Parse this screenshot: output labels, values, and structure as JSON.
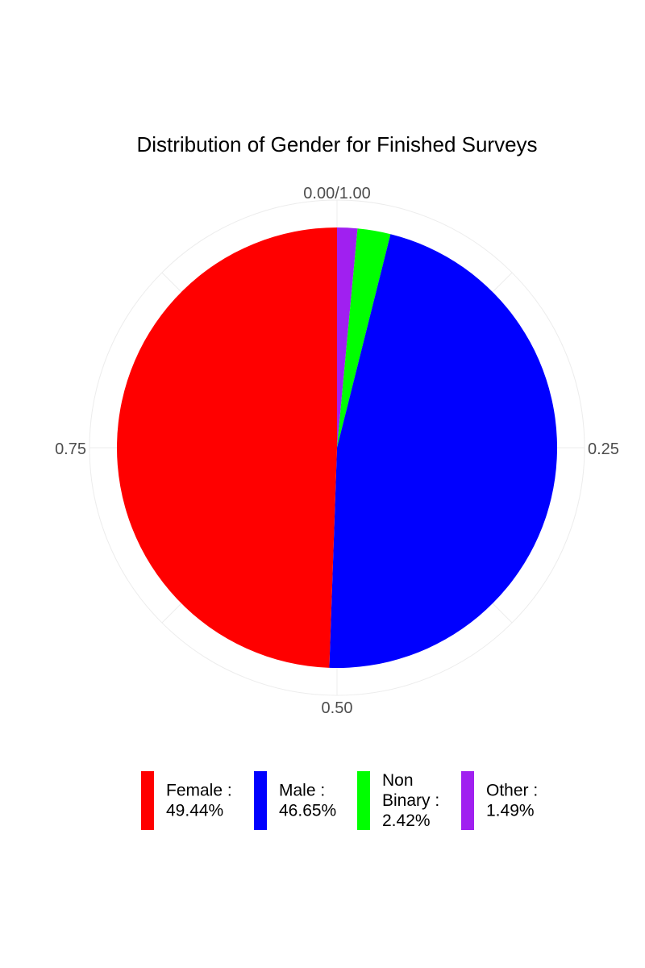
{
  "chart_data": {
    "type": "pie",
    "title": "Distribution of Gender for Finished Surveys",
    "coord": "polar",
    "tick_labels": [
      "0.00/1.00",
      "0.25",
      "0.50",
      "0.75"
    ],
    "tick_values": [
      0,
      0.25,
      0.5,
      0.75
    ],
    "slices": [
      {
        "category": "Other",
        "value": 0.0149,
        "color": "#A020F0",
        "legend_lines": [
          "Other :",
          "1.49%"
        ]
      },
      {
        "category": "Non Binary",
        "value": 0.0242,
        "color": "#00FF00",
        "legend_lines": [
          "Non",
          "Binary :",
          "2.42%"
        ]
      },
      {
        "category": "Male",
        "value": 0.4665,
        "color": "#0000FF",
        "legend_lines": [
          "Male :",
          "46.65%"
        ]
      },
      {
        "category": "Female",
        "value": 0.4944,
        "color": "#FF0000",
        "legend_lines": [
          "Female :",
          "49.44%"
        ]
      }
    ],
    "legend_order": [
      "Female",
      "Male",
      "Non Binary",
      "Other"
    ],
    "legend_position": "bottom",
    "grid": true
  }
}
